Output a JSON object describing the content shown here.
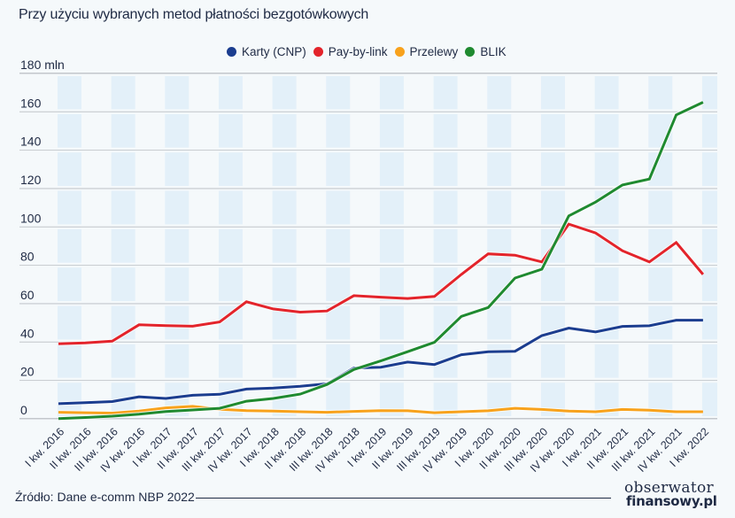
{
  "title": "Przy użyciu wybranych metod płatności bezgotówkowych",
  "source": "Źródło: Dane e-comm NBP 2022",
  "logo": {
    "line1": "obserwator",
    "line2": "finansowy.pl"
  },
  "colors": {
    "Karty (CNP)": "#1b3d8f",
    "Pay-by-link": "#e3242b",
    "Przelewy": "#f8a21c",
    "BLIK": "#1f8a30",
    "band": "#e3f0f9",
    "grid": "#c3c7cc"
  },
  "chart_data": {
    "type": "line",
    "title": "Przy użyciu wybranych metod płatności bezgotówkowych",
    "xlabel": "",
    "ylabel": "mln",
    "ylim": [
      0,
      180
    ],
    "yticks": [
      0,
      20,
      40,
      60,
      80,
      100,
      120,
      140,
      160,
      180
    ],
    "ytick_labels": [
      "0",
      "20",
      "40",
      "60",
      "80",
      "100",
      "120",
      "140",
      "160",
      "180 mln"
    ],
    "grid": true,
    "legend": "top-center",
    "categories": [
      "I kw. 2016",
      "II kw. 2016",
      "III kw. 2016",
      "IV kw. 2016",
      "I kw. 2017",
      "II kw. 2017",
      "III kw. 2017",
      "IV kw. 2017",
      "I kw. 2018",
      "II kw. 2018",
      "III kw. 2018",
      "IV kw. 2018",
      "I kw. 2019",
      "II kw. 2019",
      "III kw. 2019",
      "IV kw. 2019",
      "I kw. 2020",
      "II kw. 2020",
      "III kw. 2020",
      "IV kw. 2020",
      "I kw. 2021",
      "II kw. 2021",
      "III kw. 2021",
      "IV kw. 2021",
      "I kw. 2022"
    ],
    "series": [
      {
        "name": "Karty (CNP)",
        "values": [
          7.9,
          8.4,
          9.0,
          11.5,
          10.6,
          12.3,
          12.8,
          15.5,
          16.0,
          17.0,
          18.3,
          26.5,
          26.9,
          29.6,
          28.3,
          33.4,
          35.0,
          35.2,
          43.4,
          47.3,
          45.3,
          48.2,
          48.5,
          51.4,
          51.4
        ]
      },
      {
        "name": "Pay-by-link",
        "values": [
          39.1,
          39.6,
          40.5,
          49.0,
          48.6,
          48.3,
          50.5,
          61.0,
          57.3,
          55.6,
          56.2,
          64.2,
          63.4,
          62.7,
          63.8,
          75.3,
          86.0,
          85.3,
          81.8,
          101.5,
          96.9,
          87.6,
          81.8,
          91.9,
          75.3
        ]
      },
      {
        "name": "Przelewy",
        "values": [
          3.4,
          3.2,
          3.0,
          4.0,
          5.7,
          6.5,
          5.0,
          4.3,
          4.0,
          3.7,
          3.4,
          3.9,
          4.3,
          4.2,
          3.2,
          3.7,
          4.2,
          5.5,
          4.9,
          4.0,
          3.7,
          4.9,
          4.5,
          3.7,
          3.7
        ]
      },
      {
        "name": "BLIK",
        "values": [
          0.1,
          0.7,
          1.4,
          2.4,
          3.8,
          4.6,
          5.5,
          9.2,
          10.6,
          12.9,
          17.9,
          25.7,
          30.2,
          35.0,
          39.9,
          53.4,
          58.0,
          73.4,
          78.0,
          105.8,
          113.0,
          121.9,
          125.0,
          158.4,
          165.0
        ]
      }
    ]
  }
}
